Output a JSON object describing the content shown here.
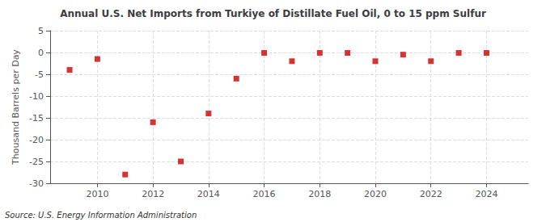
{
  "chart_data": {
    "type": "scatter",
    "title": "Annual U.S. Net Imports from Turkiye of Distillate Fuel Oil, 0 to 15 ppm Sulfur",
    "ylabel": "Thousand Barrels per Day",
    "source": "Source: U.S. Energy Information Administration",
    "x": [
      2009,
      2010,
      2011,
      2012,
      2013,
      2014,
      2015,
      2016,
      2017,
      2018,
      2019,
      2020,
      2021,
      2022,
      2023,
      2024
    ],
    "values": [
      -4.0,
      -1.5,
      -28.0,
      -16.0,
      -25.0,
      -14.0,
      -6.0,
      -0.1,
      -2.0,
      -0.1,
      -0.1,
      -2.0,
      -0.5,
      -2.0,
      -0.1,
      -0.1
    ],
    "color": "#cc0000",
    "marker": "square",
    "ylim": [
      -30,
      5
    ],
    "yticks": [
      5,
      0,
      -5,
      -10,
      -15,
      -20,
      -25,
      -30
    ],
    "xlim": [
      2008.3,
      2025.5
    ],
    "xticks": [
      2010,
      2012,
      2014,
      2016,
      2018,
      2020,
      2022,
      2024
    ],
    "grid": true
  }
}
